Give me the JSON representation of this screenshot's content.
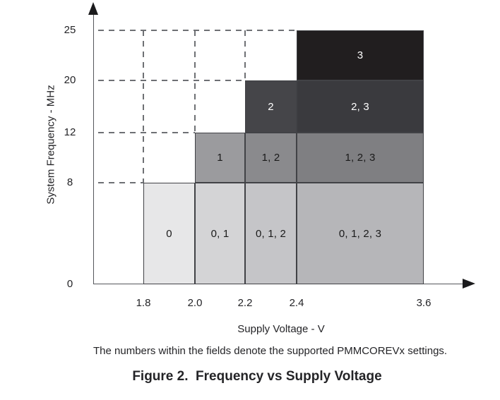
{
  "colors": {
    "background": "#ffffff",
    "text": "#242427",
    "axis": "#55575b",
    "arrow": "#1b1b1d",
    "dash": "#6e7074",
    "region_border": "#414246"
  },
  "chart_data": {
    "type": "area",
    "subtype": "stepped-operating-regions",
    "title": "Figure 2.  Frequency vs Supply Voltage",
    "note": "The numbers within the fields denote the supported PMMCOREVx settings.",
    "xlabel": "Supply Voltage - V",
    "ylabel": "System Frequency - MHz",
    "x_ticks": [
      "1.8",
      "2.0",
      "2.2",
      "2.4",
      "3.6"
    ],
    "y_ticks": [
      "0",
      "8",
      "12",
      "20",
      "25"
    ],
    "x_range": [
      1.8,
      3.6
    ],
    "y_range": [
      0,
      25
    ],
    "grid": "dashed-guides",
    "legend": "none",
    "regions": [
      {
        "label": "0",
        "v0": "1.8",
        "v1": "2.0",
        "f0": "0",
        "f1": "8",
        "fill": "#e7e7e8",
        "text": "#1a1a1a"
      },
      {
        "label": "0, 1",
        "v0": "2.0",
        "v1": "2.2",
        "f0": "0",
        "f1": "8",
        "fill": "#d4d4d6",
        "text": "#1a1a1a"
      },
      {
        "label": "0, 1, 2",
        "v0": "2.2",
        "v1": "2.4",
        "f0": "0",
        "f1": "8",
        "fill": "#c5c5c8",
        "text": "#1a1a1a"
      },
      {
        "label": "0, 1, 2, 3",
        "v0": "2.4",
        "v1": "3.6",
        "f0": "0",
        "f1": "8",
        "fill": "#b6b6b9",
        "text": "#1a1a1a"
      },
      {
        "label": "1",
        "v0": "2.0",
        "v1": "2.2",
        "f0": "8",
        "f1": "12",
        "fill": "#9b9b9e",
        "text": "#1a1a1a"
      },
      {
        "label": "1, 2",
        "v0": "2.2",
        "v1": "2.4",
        "f0": "8",
        "f1": "12",
        "fill": "#8a8a8d",
        "text": "#1a1a1a"
      },
      {
        "label": "1, 2, 3",
        "v0": "2.4",
        "v1": "3.6",
        "f0": "8",
        "f1": "12",
        "fill": "#7f7f82",
        "text": "#1a1a1a"
      },
      {
        "label": "2",
        "v0": "2.2",
        "v1": "2.4",
        "f0": "12",
        "f1": "20",
        "fill": "#454549",
        "text": "#ffffff"
      },
      {
        "label": "2, 3",
        "v0": "2.4",
        "v1": "3.6",
        "f0": "12",
        "f1": "20",
        "fill": "#3a3a3e",
        "text": "#ffffff"
      },
      {
        "label": "3",
        "v0": "2.4",
        "v1": "3.6",
        "f0": "20",
        "f1": "25",
        "fill": "#211e1f",
        "text": "#ffffff"
      }
    ],
    "h_guides": [
      {
        "f": "8",
        "v_end": "1.8"
      },
      {
        "f": "12",
        "v_end": "2.0"
      },
      {
        "f": "20",
        "v_end": "2.2"
      },
      {
        "f": "25",
        "v_end": "2.4"
      }
    ],
    "v_guides": [
      {
        "v": "1.8",
        "f_top": "25",
        "f_bottom": "8"
      },
      {
        "v": "2.0",
        "f_top": "25",
        "f_bottom": "12"
      },
      {
        "v": "2.2",
        "f_top": "25",
        "f_bottom": "20"
      }
    ]
  }
}
